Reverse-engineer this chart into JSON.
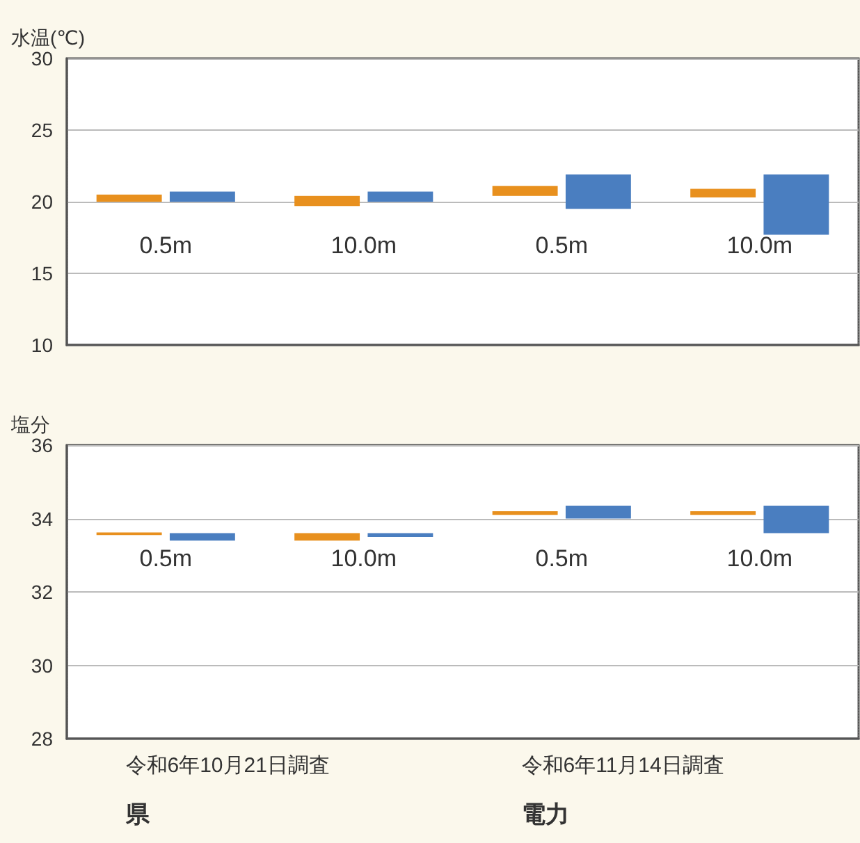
{
  "chart_data": [
    {
      "type": "bar",
      "ylabel": "水温(℃)",
      "categories": [
        "0.5m",
        "10.0m",
        "0.5m",
        "10.0m"
      ],
      "ylim": [
        10,
        30
      ],
      "yticks": [
        10,
        15,
        20,
        25,
        30
      ],
      "grid": "y",
      "series": [
        {
          "color": "#e8901e",
          "base": [
            20.0,
            19.7,
            20.4,
            20.3
          ],
          "values": [
            0.5,
            0.7,
            0.7,
            0.6
          ]
        },
        {
          "color": "#4a7ec0",
          "base": [
            20.0,
            20.0,
            19.5,
            17.7
          ],
          "values": [
            0.7,
            0.7,
            2.4,
            4.2
          ]
        }
      ]
    },
    {
      "type": "bar",
      "ylabel": "塩分",
      "categories": [
        "0.5m",
        "10.0m",
        "0.5m",
        "10.0m"
      ],
      "ylim": [
        28,
        36
      ],
      "yticks": [
        28,
        30,
        32,
        34,
        36
      ],
      "grid": "y",
      "annotations": [
        "令和6年10月21日調査",
        "令和6年11月14日調査",
        "県",
        "電力"
      ],
      "series": [
        {
          "color": "#e8901e",
          "base": [
            33.55,
            33.4,
            34.1,
            34.1
          ],
          "values": [
            0.07,
            0.2,
            0.1,
            0.1
          ]
        },
        {
          "color": "#4a7ec0",
          "base": [
            33.4,
            33.5,
            34.0,
            33.6
          ],
          "values": [
            0.2,
            0.1,
            0.35,
            0.75
          ]
        }
      ]
    }
  ]
}
